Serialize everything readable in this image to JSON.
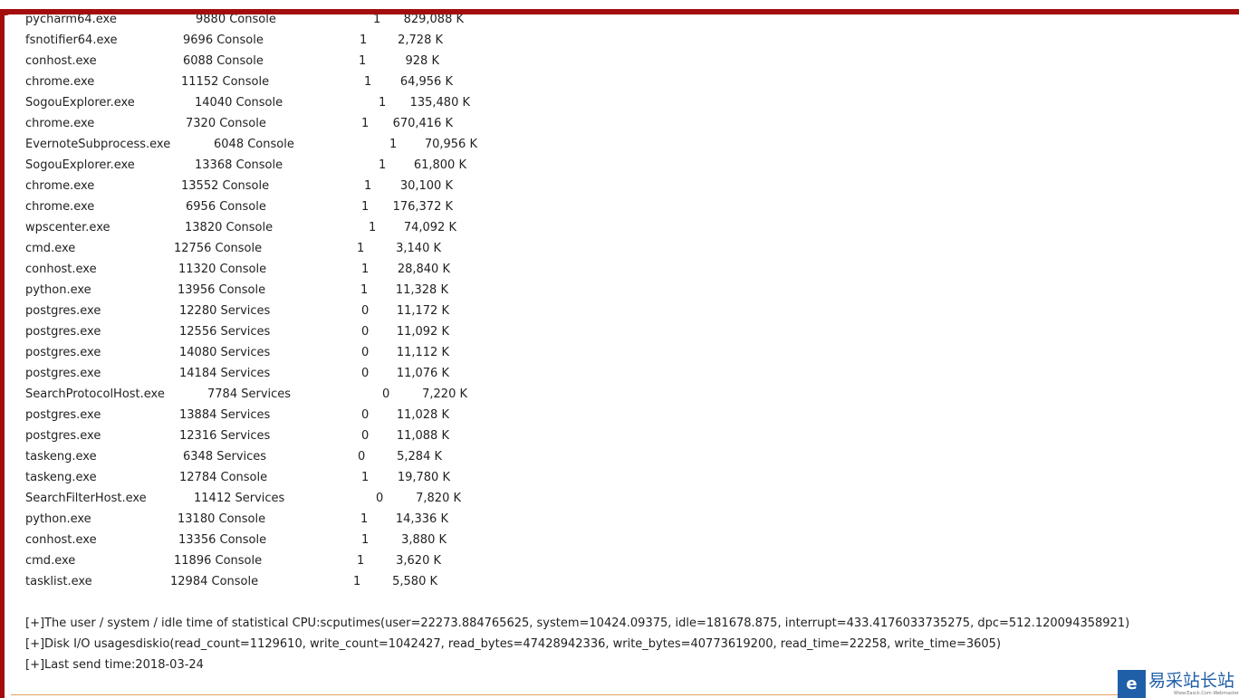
{
  "processes": [
    {
      "name": "pycharm64.exe",
      "pid": "9880",
      "session": "Console",
      "num": "1",
      "mem": "829,088 K"
    },
    {
      "name": "fsnotifier64.exe",
      "pid": "9696",
      "session": "Console",
      "num": "1",
      "mem": "2,728 K"
    },
    {
      "name": "conhost.exe",
      "pid": "6088",
      "session": "Console",
      "num": "1",
      "mem": "928 K"
    },
    {
      "name": "chrome.exe",
      "pid": "11152",
      "session": "Console",
      "num": "1",
      "mem": "64,956 K"
    },
    {
      "name": "SogouExplorer.exe",
      "pid": "14040",
      "session": "Console",
      "num": "1",
      "mem": "135,480 K"
    },
    {
      "name": "chrome.exe",
      "pid": "7320",
      "session": "Console",
      "num": "1",
      "mem": "670,416 K"
    },
    {
      "name": "EvernoteSubprocess.exe",
      "pid": "6048",
      "session": "Console",
      "num": "1",
      "mem": "70,956 K"
    },
    {
      "name": "SogouExplorer.exe",
      "pid": "13368",
      "session": "Console",
      "num": "1",
      "mem": "61,800 K"
    },
    {
      "name": "chrome.exe",
      "pid": "13552",
      "session": "Console",
      "num": "1",
      "mem": "30,100 K"
    },
    {
      "name": "chrome.exe",
      "pid": "6956",
      "session": "Console",
      "num": "1",
      "mem": "176,372 K"
    },
    {
      "name": "wpscenter.exe",
      "pid": "13820",
      "session": "Console",
      "num": "1",
      "mem": "74,092 K"
    },
    {
      "name": "cmd.exe",
      "pid": "12756",
      "session": "Console",
      "num": "1",
      "mem": "3,140 K"
    },
    {
      "name": "conhost.exe",
      "pid": "11320",
      "session": "Console",
      "num": "1",
      "mem": "28,840 K"
    },
    {
      "name": "python.exe",
      "pid": "13956",
      "session": "Console",
      "num": "1",
      "mem": "11,328 K"
    },
    {
      "name": "postgres.exe",
      "pid": "12280",
      "session": "Services",
      "num": "0",
      "mem": "11,172 K"
    },
    {
      "name": "postgres.exe",
      "pid": "12556",
      "session": "Services",
      "num": "0",
      "mem": "11,092 K"
    },
    {
      "name": "postgres.exe",
      "pid": "14080",
      "session": "Services",
      "num": "0",
      "mem": "11,112 K"
    },
    {
      "name": "postgres.exe",
      "pid": "14184",
      "session": "Services",
      "num": "0",
      "mem": "11,076 K"
    },
    {
      "name": "SearchProtocolHost.exe",
      "pid": "7784",
      "session": "Services",
      "num": "0",
      "mem": "7,220 K"
    },
    {
      "name": "postgres.exe",
      "pid": "13884",
      "session": "Services",
      "num": "0",
      "mem": "11,028 K"
    },
    {
      "name": "postgres.exe",
      "pid": "12316",
      "session": "Services",
      "num": "0",
      "mem": "11,088 K"
    },
    {
      "name": "taskeng.exe",
      "pid": "6348",
      "session": "Services",
      "num": "0",
      "mem": "5,284 K"
    },
    {
      "name": "taskeng.exe",
      "pid": "12784",
      "session": "Console",
      "num": "1",
      "mem": "19,780 K"
    },
    {
      "name": "SearchFilterHost.exe",
      "pid": "11412",
      "session": "Services",
      "num": "0",
      "mem": "7,820 K"
    },
    {
      "name": "python.exe",
      "pid": "13180",
      "session": "Console",
      "num": "1",
      "mem": "14,336 K"
    },
    {
      "name": "conhost.exe",
      "pid": "13356",
      "session": "Console",
      "num": "1",
      "mem": "3,880 K"
    },
    {
      "name": "cmd.exe",
      "pid": "11896",
      "session": "Console",
      "num": "1",
      "mem": "3,620 K"
    },
    {
      "name": "tasklist.exe",
      "pid": "12984",
      "session": "Console",
      "num": "1",
      "mem": "5,580 K"
    }
  ],
  "info": {
    "cpu": "[+]The user / system / idle time of statistical CPU:scputimes(user=22273.884765625, system=10424.09375, idle=181678.875, interrupt=433.4176033735275, dpc=512.120094358921)",
    "disk": "[+]Disk I/O usagesdiskio(read_count=1129610, write_count=1042427, read_bytes=47428942336, write_bytes=40773619200, read_time=22258, write_time=3605)",
    "last_send": "[+]Last send time:2018-03-24"
  },
  "watermark": {
    "name": "易采站长站",
    "subtitle": "Www.Easck.Com Webmaster",
    "icon": "e-logo-icon",
    "color": "#1f5fa8"
  },
  "colors": {
    "frame": "#a30d0d",
    "divider": "#e2a060"
  }
}
